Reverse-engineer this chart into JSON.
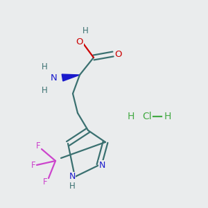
{
  "bg_color": "#eaeced",
  "atom_colors": {
    "C": "#3a7070",
    "O": "#cc0000",
    "N": "#1a1acc",
    "F": "#cc44cc",
    "H": "#3a7070",
    "HCl": "#44aa44"
  },
  "bond_color": "#3a7070",
  "wedge_color": "#1a1acc"
}
